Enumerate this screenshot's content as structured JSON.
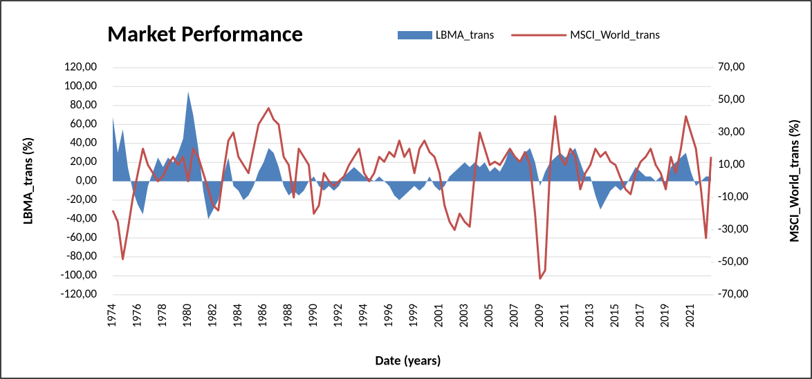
{
  "chart_data": {
    "type": "combo",
    "title": "Market Performance",
    "x_label": "Date (years)",
    "y_label": "LBMA_trans (%)",
    "y2_label": "MSCI_World_trans (%)",
    "categories": [
      "1974",
      null,
      null,
      null,
      null,
      "1976",
      null,
      null,
      null,
      null,
      "1978",
      null,
      null,
      null,
      null,
      "1980",
      null,
      null,
      null,
      null,
      "1982",
      null,
      null,
      null,
      null,
      "1984",
      null,
      null,
      null,
      null,
      "1986",
      null,
      null,
      null,
      null,
      "1988",
      null,
      null,
      null,
      null,
      "1990",
      null,
      null,
      null,
      null,
      "1992",
      null,
      null,
      null,
      null,
      "1994",
      null,
      null,
      null,
      null,
      "1996",
      null,
      null,
      null,
      null,
      "1999",
      null,
      null,
      null,
      null,
      "2001",
      null,
      null,
      null,
      null,
      "2003",
      null,
      null,
      null,
      null,
      "2005",
      null,
      null,
      null,
      null,
      "2007",
      null,
      null,
      null,
      null,
      "2009",
      null,
      null,
      null,
      null,
      "2011",
      null,
      null,
      null,
      null,
      "2013",
      null,
      null,
      null,
      null,
      "2015",
      null,
      null,
      null,
      null,
      "2017",
      null,
      null,
      null,
      null,
      "2019",
      null,
      null,
      null,
      null,
      "2021",
      null,
      null,
      null,
      null
    ],
    "series": [
      {
        "name": "LBMA_trans",
        "type": "area",
        "color": "#4f81bd",
        "values": [
          68,
          30,
          55,
          15,
          -10,
          -25,
          -35,
          -5,
          10,
          25,
          15,
          25,
          20,
          30,
          45,
          95,
          70,
          35,
          -10,
          -40,
          -30,
          -20,
          5,
          25,
          -5,
          -10,
          -20,
          -15,
          -5,
          10,
          20,
          35,
          30,
          15,
          -5,
          -15,
          -10,
          -15,
          -10,
          0,
          5,
          -5,
          -10,
          -5,
          -10,
          -5,
          5,
          10,
          15,
          10,
          5,
          3,
          0,
          5,
          0,
          -5,
          -15,
          -20,
          -15,
          -10,
          -5,
          -10,
          -5,
          5,
          -5,
          -10,
          -5,
          5,
          10,
          15,
          20,
          15,
          20,
          15,
          20,
          10,
          15,
          10,
          20,
          35,
          25,
          20,
          30,
          35,
          20,
          -5,
          10,
          20,
          25,
          30,
          25,
          30,
          35,
          20,
          5,
          5,
          -15,
          -30,
          -20,
          -10,
          -5,
          -10,
          -5,
          5,
          15,
          10,
          5,
          5,
          0,
          5,
          -5,
          15,
          20,
          25,
          30,
          10,
          -5,
          0,
          5,
          5
        ]
      },
      {
        "name": "MSCI_World_trans",
        "type": "line",
        "axis": "y2",
        "color": "#c0504d",
        "values": [
          -18,
          -25,
          -48,
          -30,
          -10,
          5,
          20,
          10,
          5,
          0,
          3,
          10,
          15,
          10,
          15,
          0,
          20,
          15,
          5,
          -5,
          -15,
          -18,
          5,
          25,
          30,
          15,
          10,
          5,
          20,
          35,
          40,
          45,
          38,
          35,
          15,
          10,
          -10,
          20,
          15,
          10,
          -20,
          -15,
          5,
          0,
          -3,
          0,
          3,
          10,
          15,
          20,
          5,
          0,
          5,
          15,
          12,
          18,
          15,
          25,
          15,
          20,
          5,
          20,
          25,
          18,
          15,
          5,
          -15,
          -25,
          -30,
          -20,
          -25,
          -28,
          5,
          30,
          20,
          10,
          12,
          10,
          15,
          20,
          15,
          12,
          18,
          10,
          -20,
          -60,
          -55,
          10,
          40,
          15,
          10,
          20,
          15,
          -5,
          5,
          10,
          20,
          15,
          18,
          12,
          10,
          2,
          -5,
          -8,
          5,
          12,
          15,
          20,
          10,
          5,
          -5,
          15,
          5,
          20,
          40,
          30,
          20,
          -5,
          -35,
          15
        ]
      }
    ],
    "ylim": [
      -120,
      120
    ],
    "yticks": [
      {
        "value": -120,
        "label": "-120,00"
      },
      {
        "value": -100,
        "label": "-100,00"
      },
      {
        "value": -80,
        "label": "-80,00"
      },
      {
        "value": -60,
        "label": "-60,00"
      },
      {
        "value": -40,
        "label": "-40,00"
      },
      {
        "value": -20,
        "label": "-20,00"
      },
      {
        "value": 0,
        "label": "0,00"
      },
      {
        "value": 20,
        "label": "20,00"
      },
      {
        "value": 40,
        "label": "40,00"
      },
      {
        "value": 60,
        "label": "60,00"
      },
      {
        "value": 80,
        "label": "80,00"
      },
      {
        "value": 100,
        "label": "100,00"
      },
      {
        "value": 120,
        "label": "120,00"
      }
    ],
    "y2lim": [
      -70,
      70
    ],
    "y2ticks": [
      {
        "value": -70,
        "label": "-70,00"
      },
      {
        "value": -50,
        "label": "-50,00"
      },
      {
        "value": -30,
        "label": "-30,00"
      },
      {
        "value": -10,
        "label": "-10,00"
      },
      {
        "value": 10,
        "label": "10,00"
      },
      {
        "value": 30,
        "label": "30,00"
      },
      {
        "value": 50,
        "label": "50,00"
      },
      {
        "value": 70,
        "label": "70,00"
      }
    ],
    "grid": true,
    "legend": "top"
  }
}
